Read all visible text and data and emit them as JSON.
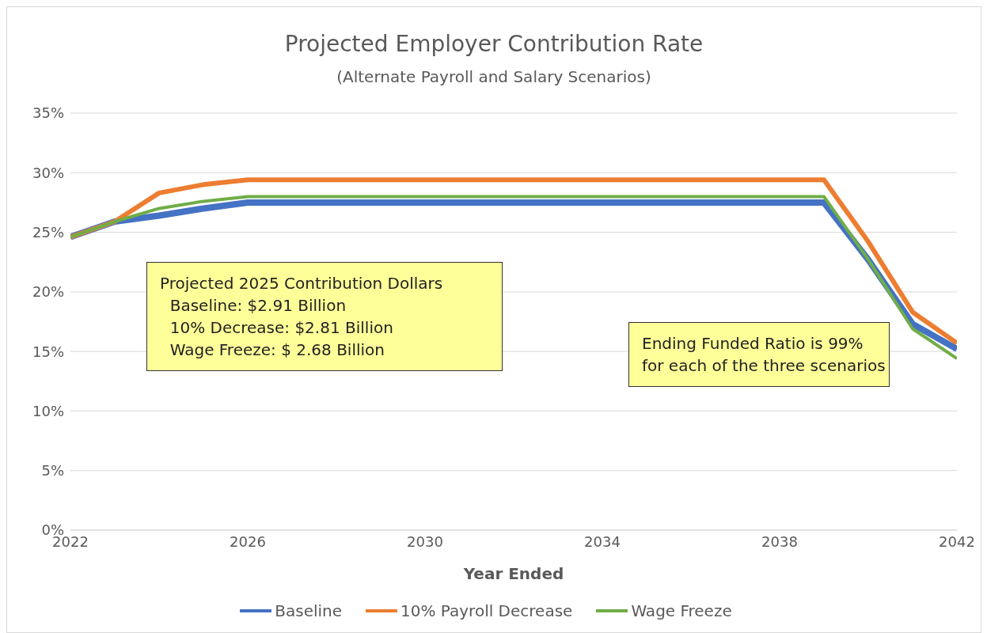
{
  "chart_data": {
    "type": "line",
    "title": "Projected Employer Contribution Rate",
    "subtitle": "(Alternate Payroll and Salary Scenarios)",
    "xlabel": "Year Ended",
    "x": [
      2022,
      2023,
      2024,
      2025,
      2026,
      2027,
      2028,
      2029,
      2030,
      2031,
      2032,
      2033,
      2034,
      2035,
      2036,
      2037,
      2038,
      2039,
      2040,
      2041,
      2042
    ],
    "series": [
      {
        "name": "Baseline",
        "color": "#4472c4",
        "values": [
          24.6,
          25.9,
          26.4,
          27.0,
          27.5,
          27.5,
          27.5,
          27.5,
          27.5,
          27.5,
          27.5,
          27.5,
          27.5,
          27.5,
          27.5,
          27.5,
          27.5,
          27.5,
          22.7,
          17.3,
          15.2
        ]
      },
      {
        "name": "10% Payroll Decrease",
        "color": "#ed7d31",
        "values": [
          24.6,
          25.9,
          28.3,
          29.0,
          29.4,
          29.4,
          29.4,
          29.4,
          29.4,
          29.4,
          29.4,
          29.4,
          29.4,
          29.4,
          29.4,
          29.4,
          29.4,
          29.4,
          24.2,
          18.3,
          15.7
        ]
      },
      {
        "name": "Wage Freeze",
        "color": "#70ad47",
        "values": [
          24.6,
          25.9,
          27.0,
          27.6,
          28.0,
          28.0,
          28.0,
          28.0,
          28.0,
          28.0,
          28.0,
          28.0,
          28.0,
          28.0,
          28.0,
          28.0,
          28.0,
          28.0,
          22.7,
          16.9,
          14.4
        ]
      }
    ],
    "xlim": [
      2022,
      2042
    ],
    "xticks": [
      2022,
      2026,
      2030,
      2034,
      2038,
      2042
    ],
    "ylim": [
      0,
      35
    ],
    "yticks": [
      {
        "value": 0,
        "label": "0%"
      },
      {
        "value": 5,
        "label": "5%"
      },
      {
        "value": 10,
        "label": "10%"
      },
      {
        "value": 15,
        "label": "15%"
      },
      {
        "value": 20,
        "label": "20%"
      },
      {
        "value": 25,
        "label": "25%"
      },
      {
        "value": 30,
        "label": "30%"
      },
      {
        "value": 35,
        "label": "35%"
      }
    ],
    "grid": "y",
    "legend": "bottom",
    "marker": "none",
    "line_style": "solid",
    "annotations": [
      {
        "text": "Projected 2025 Contribution Dollars\n  Baseline: $2.91 Billion\n  10% Decrease: $2.81 Billion\n  Wage Freeze: $ 2.68 Billion"
      },
      {
        "text": "Ending Funded Ratio is 99%\nfor each of the three scenarios"
      }
    ]
  }
}
